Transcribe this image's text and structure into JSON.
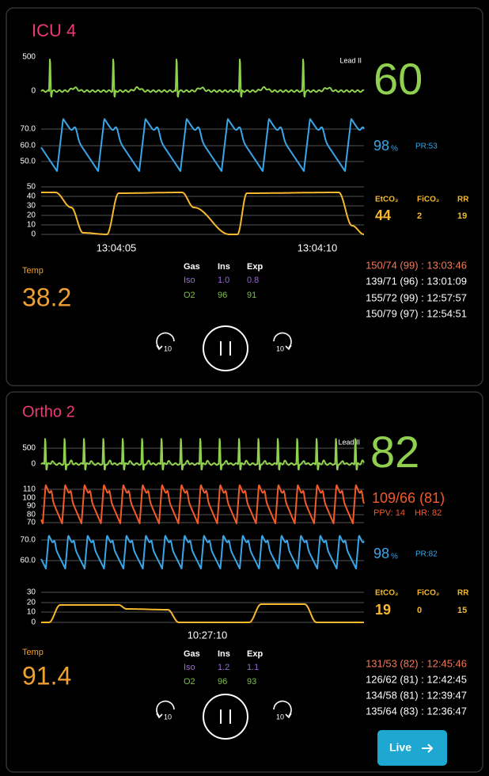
{
  "panels": [
    {
      "title": "ICU 4",
      "ecg": {
        "ticks": [
          "500",
          "0"
        ],
        "lead": "Lead II",
        "hr": "60"
      },
      "spo2": {
        "ticks": [
          "70.0",
          "60.0",
          "50.0"
        ],
        "value": "98",
        "unit": "%",
        "pr": "PR:53"
      },
      "co2": {
        "ticks": [
          "50",
          "40",
          "30",
          "20",
          "10",
          "0"
        ],
        "metrics": {
          "labels": [
            "EtCO₂",
            "FiCO₂",
            "RR"
          ],
          "values": [
            "44",
            "2",
            "19"
          ]
        }
      },
      "times": [
        "13:04:05",
        "13:04:10"
      ],
      "temp": {
        "label": "Temp",
        "value": "38.2"
      },
      "gas": {
        "header": [
          "Gas",
          "Ins",
          "Exp"
        ],
        "rows": [
          [
            "Iso",
            "1.0",
            "0.8"
          ],
          [
            "O2",
            "96",
            "91"
          ]
        ]
      },
      "bp_history": [
        "150/74 (99) : 13:03:46",
        "139/71 (96) : 13:01:09",
        "155/72 (99) : 12:57:57",
        "150/79 (97) : 12:54:51"
      ],
      "controls": {
        "back": "10",
        "forward": "10"
      }
    },
    {
      "title": "Ortho 2",
      "ecg": {
        "ticks": [
          "500",
          "0"
        ],
        "lead": "Lead II",
        "hr": "82"
      },
      "abp": {
        "ticks": [
          "110",
          "100",
          "90",
          "80",
          "70"
        ],
        "value": "109/66 (81)",
        "ppv": "PPV: 14",
        "hr": "HR: 82"
      },
      "spo2": {
        "ticks": [
          "70.0",
          "60.0"
        ],
        "value": "98",
        "unit": "%",
        "pr": "PR:82"
      },
      "co2": {
        "ticks": [
          "30",
          "20",
          "10",
          "0"
        ],
        "metrics": {
          "labels": [
            "EtCO₂",
            "FiCO₂",
            "RR"
          ],
          "values": [
            "19",
            "0",
            "15"
          ]
        }
      },
      "times": [
        "10:27:10"
      ],
      "temp": {
        "label": "Temp",
        "value": "91.4"
      },
      "gas": {
        "header": [
          "Gas",
          "Ins",
          "Exp"
        ],
        "rows": [
          [
            "Iso",
            "1.2",
            "1.1"
          ],
          [
            "O2",
            "96",
            "93"
          ]
        ]
      },
      "bp_history": [
        "131/53 (82) : 12:45:46",
        "126/62 (81) : 12:42:45",
        "134/58 (81) : 12:39:47",
        "135/64 (83) : 12:36:47"
      ],
      "controls": {
        "back": "10",
        "forward": "10"
      }
    }
  ],
  "live_button": "Live"
}
